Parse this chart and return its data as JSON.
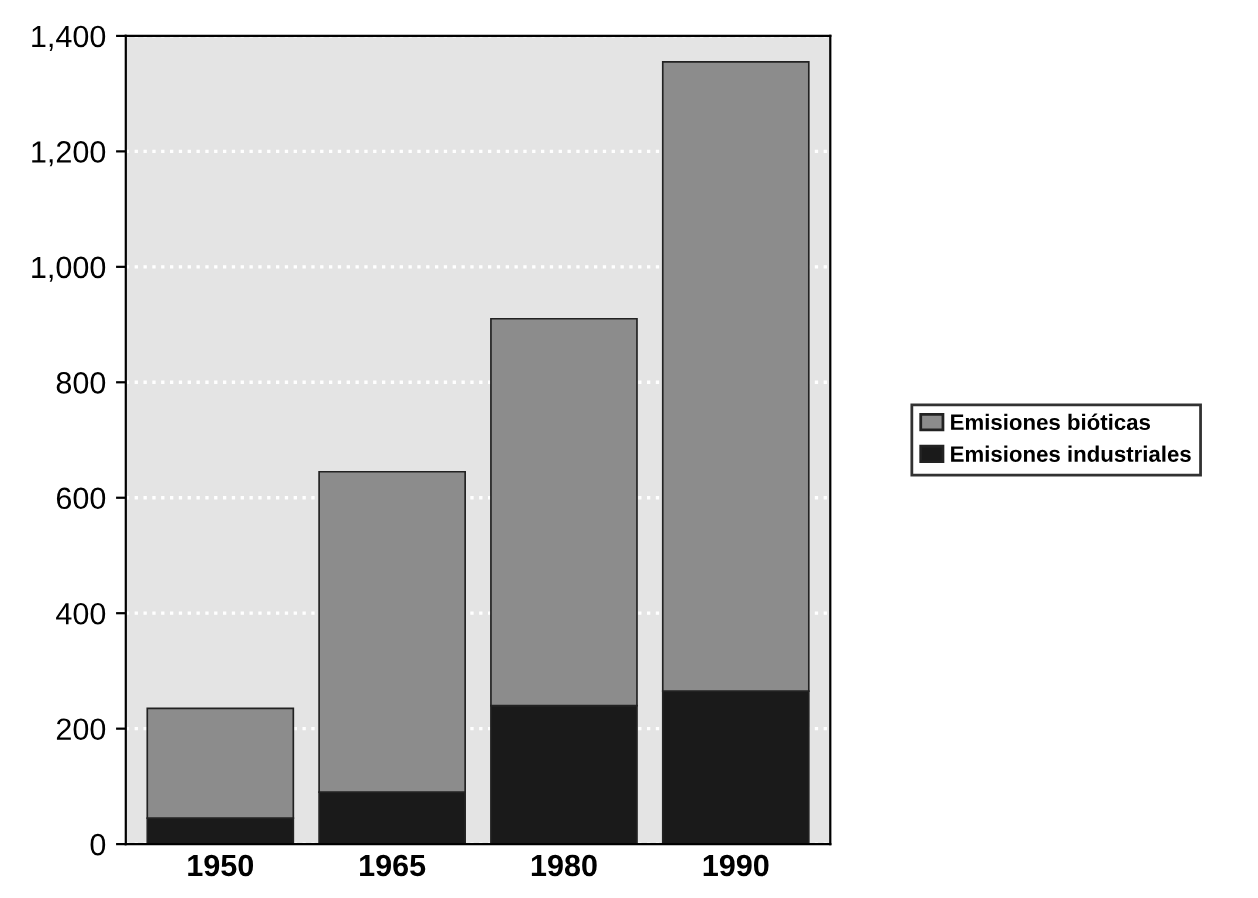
{
  "chart_data": {
    "type": "bar",
    "stacked": true,
    "categories": [
      "1950",
      "1965",
      "1980",
      "1990"
    ],
    "series": [
      {
        "name": "Emisiones industriales",
        "color": "#1a1a1a",
        "values": [
          45,
          90,
          240,
          265
        ]
      },
      {
        "name": "Emisiones bióticas",
        "color": "#8c8c8c",
        "values": [
          190,
          555,
          670,
          1090
        ]
      }
    ],
    "ylim": [
      0,
      1400
    ],
    "yticks": [
      0,
      200,
      400,
      {
        "value": 600,
        "label": "600"
      },
      800,
      {
        "value": 1000,
        "label": "1,000"
      },
      {
        "value": 1200,
        "label": "1,200"
      },
      {
        "value": 1400,
        "label": "1,400"
      }
    ],
    "grid": "y",
    "legend": "right"
  }
}
